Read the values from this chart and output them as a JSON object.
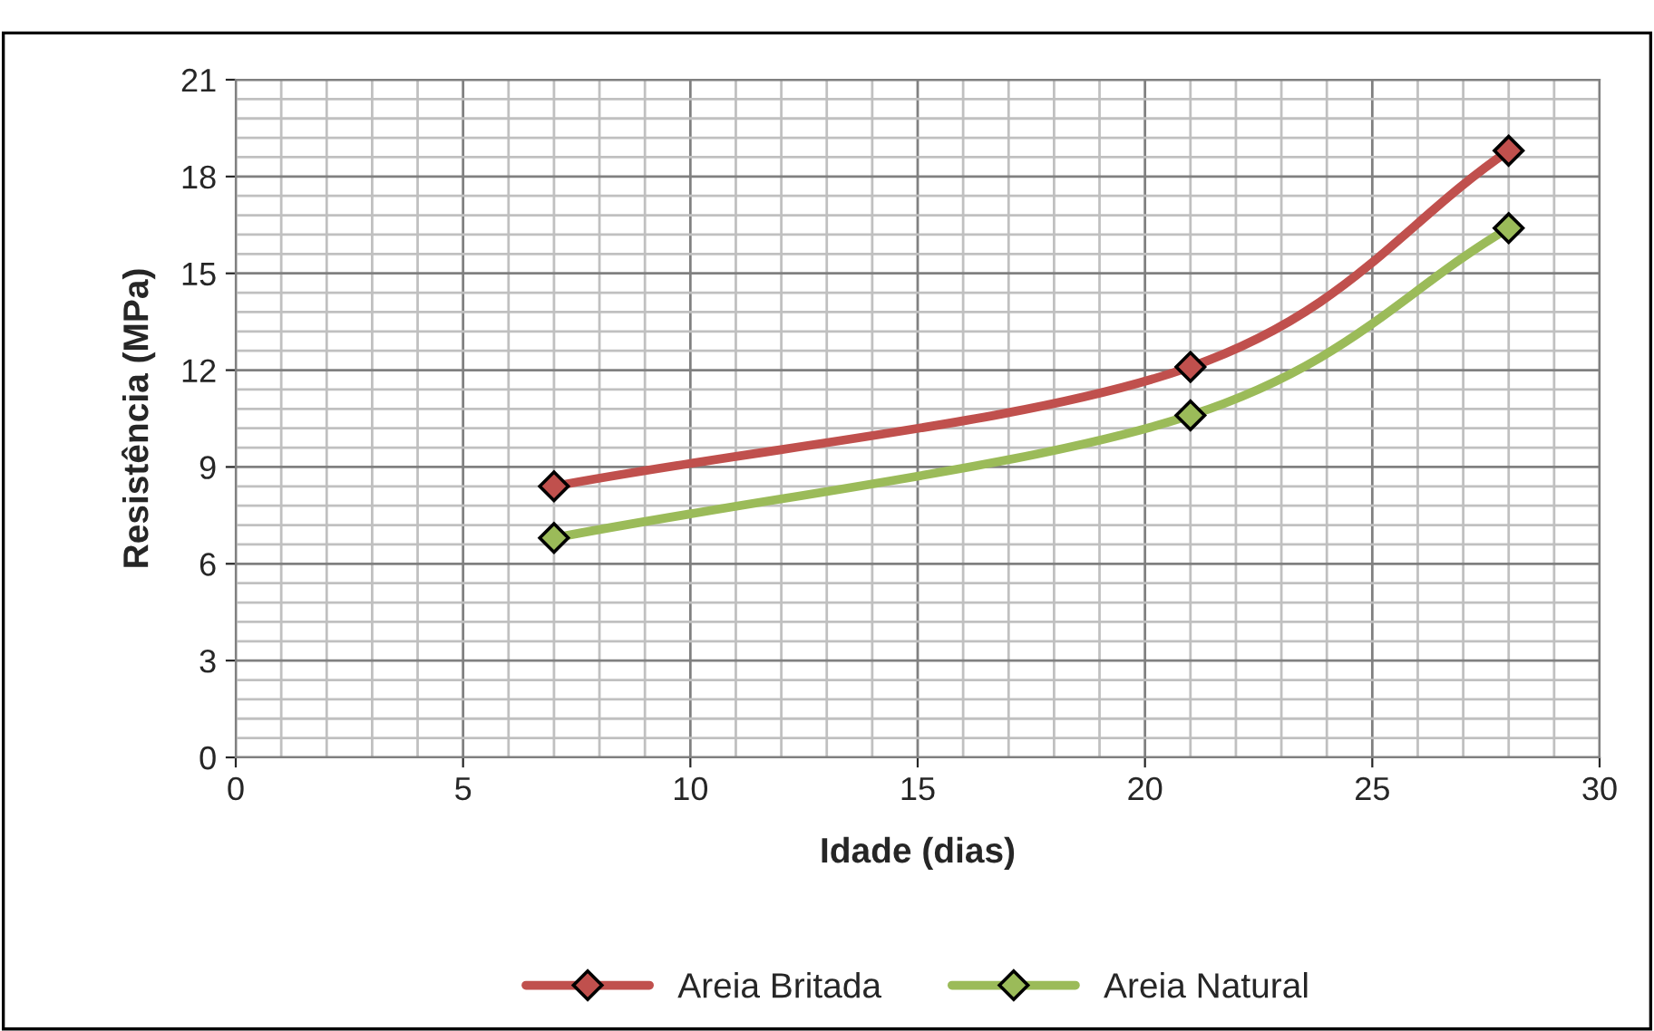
{
  "chart_data": {
    "type": "line",
    "xlabel": "Idade (dias)",
    "ylabel": "Resistência (MPa)",
    "xlim": [
      0,
      30
    ],
    "xticks": [
      0,
      5,
      10,
      15,
      20,
      25,
      30
    ],
    "ylim": [
      0,
      21
    ],
    "yticks": [
      0,
      3,
      6,
      9,
      12,
      15,
      18,
      21
    ],
    "x": [
      7,
      21,
      28
    ],
    "grid": true,
    "legend": "bottom",
    "marker": "diamond",
    "line_style": "solid",
    "series": [
      {
        "name": "Areia Britada",
        "color": "#c0504d",
        "values": [
          8.4,
          12.1,
          18.8
        ]
      },
      {
        "name": "Areia Natural",
        "color": "#9bbb59",
        "values": [
          6.8,
          10.6,
          16.4
        ]
      }
    ]
  }
}
